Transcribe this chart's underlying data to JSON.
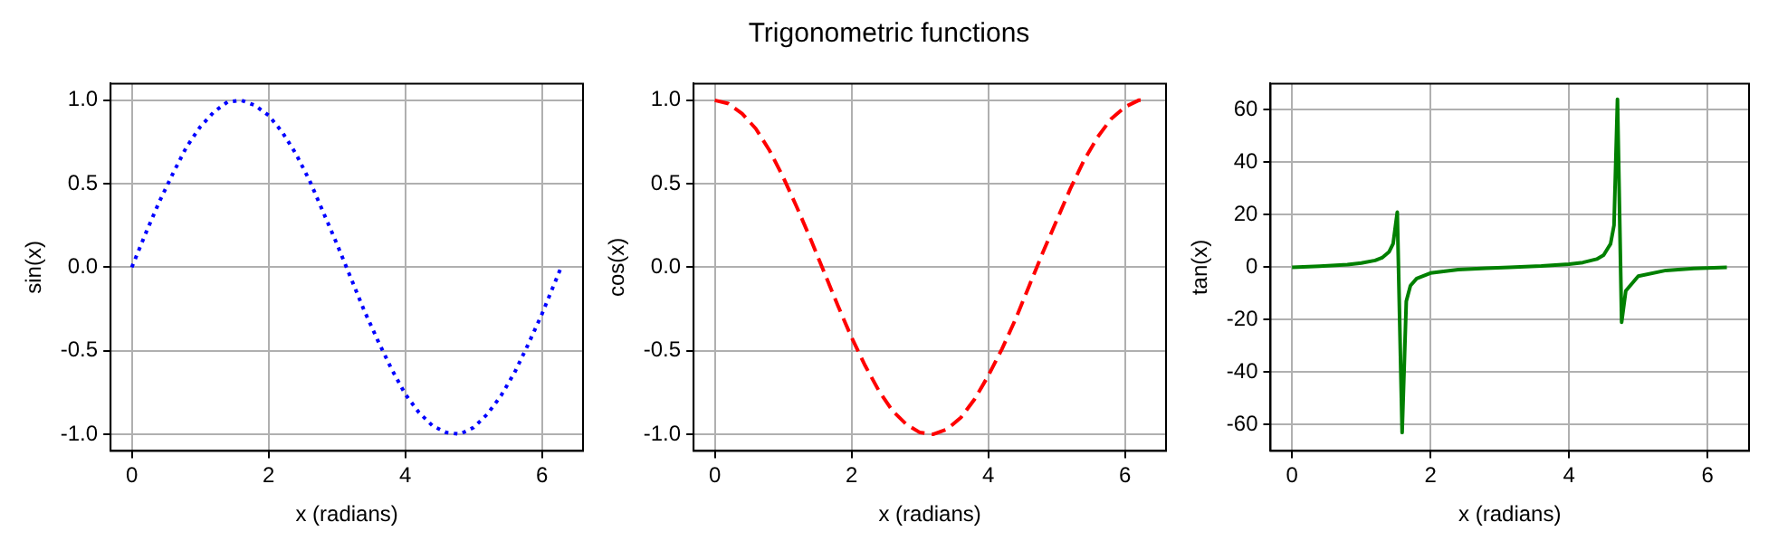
{
  "chart_data": [
    {
      "type": "line",
      "xlabel": "x (radians)",
      "ylabel": "sin(x)",
      "xlim": [
        -0.31,
        6.6
      ],
      "ylim": [
        -1.1,
        1.1
      ],
      "xticks": [
        0,
        2,
        4,
        6
      ],
      "yticks": [
        {
          "value": -1,
          "label": "-1.0"
        },
        -0.5,
        {
          "value": 0,
          "label": "0.0"
        },
        0.5,
        {
          "value": 1,
          "label": "1.0"
        }
      ],
      "grid": true,
      "legend": false,
      "marker": "none",
      "series": [
        {
          "color": "#0000ff",
          "line_style": "dotted",
          "x": [
            0,
            0.2,
            0.4,
            0.6,
            0.8,
            1.0,
            1.2,
            1.4,
            1.6,
            1.8,
            2.0,
            2.2,
            2.4,
            2.6,
            2.8,
            3.0,
            3.2,
            3.4,
            3.6,
            3.8,
            4.0,
            4.2,
            4.4,
            4.6,
            4.8,
            5.0,
            5.2,
            5.4,
            5.6,
            5.8,
            6.0,
            6.2,
            6.28
          ],
          "values": [
            0,
            0.2,
            0.39,
            0.56,
            0.72,
            0.84,
            0.93,
            0.99,
            1.0,
            0.97,
            0.91,
            0.81,
            0.68,
            0.52,
            0.33,
            0.14,
            -0.06,
            -0.26,
            -0.44,
            -0.61,
            -0.76,
            -0.87,
            -0.95,
            -0.99,
            -1.0,
            -0.96,
            -0.88,
            -0.77,
            -0.63,
            -0.46,
            -0.28,
            -0.08,
            0
          ]
        }
      ]
    },
    {
      "type": "line",
      "title": "Trigonometric functions",
      "xlabel": "x (radians)",
      "ylabel": "cos(x)",
      "xlim": [
        -0.31,
        6.6
      ],
      "ylim": [
        -1.1,
        1.1
      ],
      "xticks": [
        0,
        2,
        4,
        6
      ],
      "yticks": [
        {
          "value": -1,
          "label": "-1.0"
        },
        -0.5,
        {
          "value": 0,
          "label": "0.0"
        },
        0.5,
        {
          "value": 1,
          "label": "1.0"
        }
      ],
      "grid": true,
      "legend": false,
      "marker": "none",
      "series": [
        {
          "color": "#ff0000",
          "line_style": "dashed",
          "x": [
            0,
            0.2,
            0.4,
            0.6,
            0.8,
            1.0,
            1.2,
            1.4,
            1.6,
            1.8,
            2.0,
            2.2,
            2.4,
            2.6,
            2.8,
            3.0,
            3.2,
            3.4,
            3.6,
            3.8,
            4.0,
            4.2,
            4.4,
            4.6,
            4.8,
            5.0,
            5.2,
            5.4,
            5.6,
            5.8,
            6.0,
            6.2,
            6.28
          ],
          "values": [
            1.0,
            0.98,
            0.92,
            0.83,
            0.7,
            0.54,
            0.36,
            0.17,
            -0.03,
            -0.23,
            -0.42,
            -0.59,
            -0.74,
            -0.86,
            -0.94,
            -0.99,
            -1.0,
            -0.97,
            -0.9,
            -0.79,
            -0.65,
            -0.49,
            -0.31,
            -0.11,
            0.09,
            0.28,
            0.47,
            0.64,
            0.78,
            0.89,
            0.96,
            1.0,
            1.0
          ]
        }
      ]
    },
    {
      "type": "line",
      "xlabel": "x (radians)",
      "ylabel": "tan(x)",
      "xlim": [
        -0.31,
        6.6
      ],
      "ylim": [
        -70,
        70
      ],
      "xticks": [
        0,
        2,
        4,
        6
      ],
      "yticks": [
        -60,
        -40,
        -20,
        0,
        20,
        40,
        60
      ],
      "grid": true,
      "legend": false,
      "marker": "none",
      "series": [
        {
          "color": "#008000",
          "line_style": "solid",
          "x": [
            0,
            0.4,
            0.8,
            1.0,
            1.2,
            1.3,
            1.4,
            1.46,
            1.52,
            1.59,
            1.65,
            1.71,
            1.8,
            2.0,
            2.4,
            2.8,
            3.14,
            3.6,
            4.0,
            4.2,
            4.4,
            4.5,
            4.6,
            4.65,
            4.7,
            4.76,
            4.82,
            5.0,
            5.4,
            5.8,
            6.28
          ],
          "values": [
            0,
            0.4,
            1,
            1.6,
            2.6,
            3.6,
            5.8,
            9,
            21,
            -63,
            -13,
            -7,
            -4.3,
            -2.2,
            -0.9,
            -0.4,
            0,
            0.5,
            1.2,
            1.8,
            3.1,
            4.6,
            8.9,
            16,
            64,
            -21,
            -9,
            -3.4,
            -1.2,
            -0.5,
            0
          ]
        }
      ]
    }
  ]
}
